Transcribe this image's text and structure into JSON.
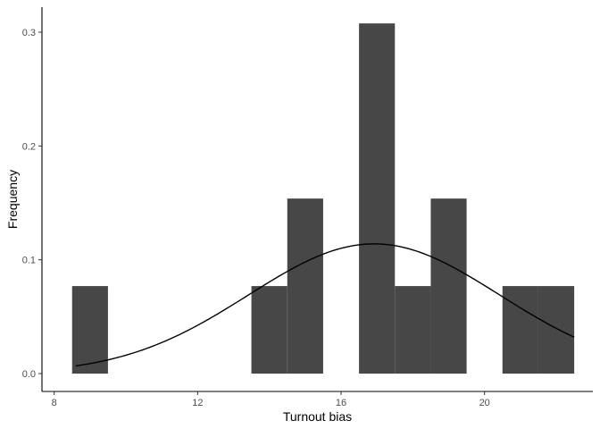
{
  "chart_data": {
    "type": "bar",
    "title": "",
    "xlabel": "Turnout bias",
    "ylabel": "Frequency",
    "xlim": [
      8,
      22.5
    ],
    "ylim": [
      0,
      0.32
    ],
    "x_ticks": [
      8,
      12,
      16,
      20
    ],
    "y_ticks": [
      0.0,
      0.1,
      0.2,
      0.3
    ],
    "y_tick_labels": [
      "0.0",
      "0.1",
      "0.2",
      "0.3"
    ],
    "grid": false,
    "bar_color": "#474747",
    "bins": [
      {
        "x0": 8.5,
        "x1": 9.5,
        "value": 0.0769
      },
      {
        "x0": 13.5,
        "x1": 14.5,
        "value": 0.0769
      },
      {
        "x0": 14.5,
        "x1": 15.5,
        "value": 0.1538
      },
      {
        "x0": 16.5,
        "x1": 17.5,
        "value": 0.3077
      },
      {
        "x0": 17.5,
        "x1": 18.5,
        "value": 0.0769
      },
      {
        "x0": 18.5,
        "x1": 19.5,
        "value": 0.1538
      },
      {
        "x0": 20.5,
        "x1": 21.5,
        "value": 0.0769
      },
      {
        "x0": 21.5,
        "x1": 22.5,
        "value": 0.0769
      }
    ],
    "density_curve": {
      "type": "normal",
      "mean": 16.92,
      "sd": 3.5,
      "x_range": [
        8.6,
        22.5
      ],
      "color": "#000000"
    }
  }
}
